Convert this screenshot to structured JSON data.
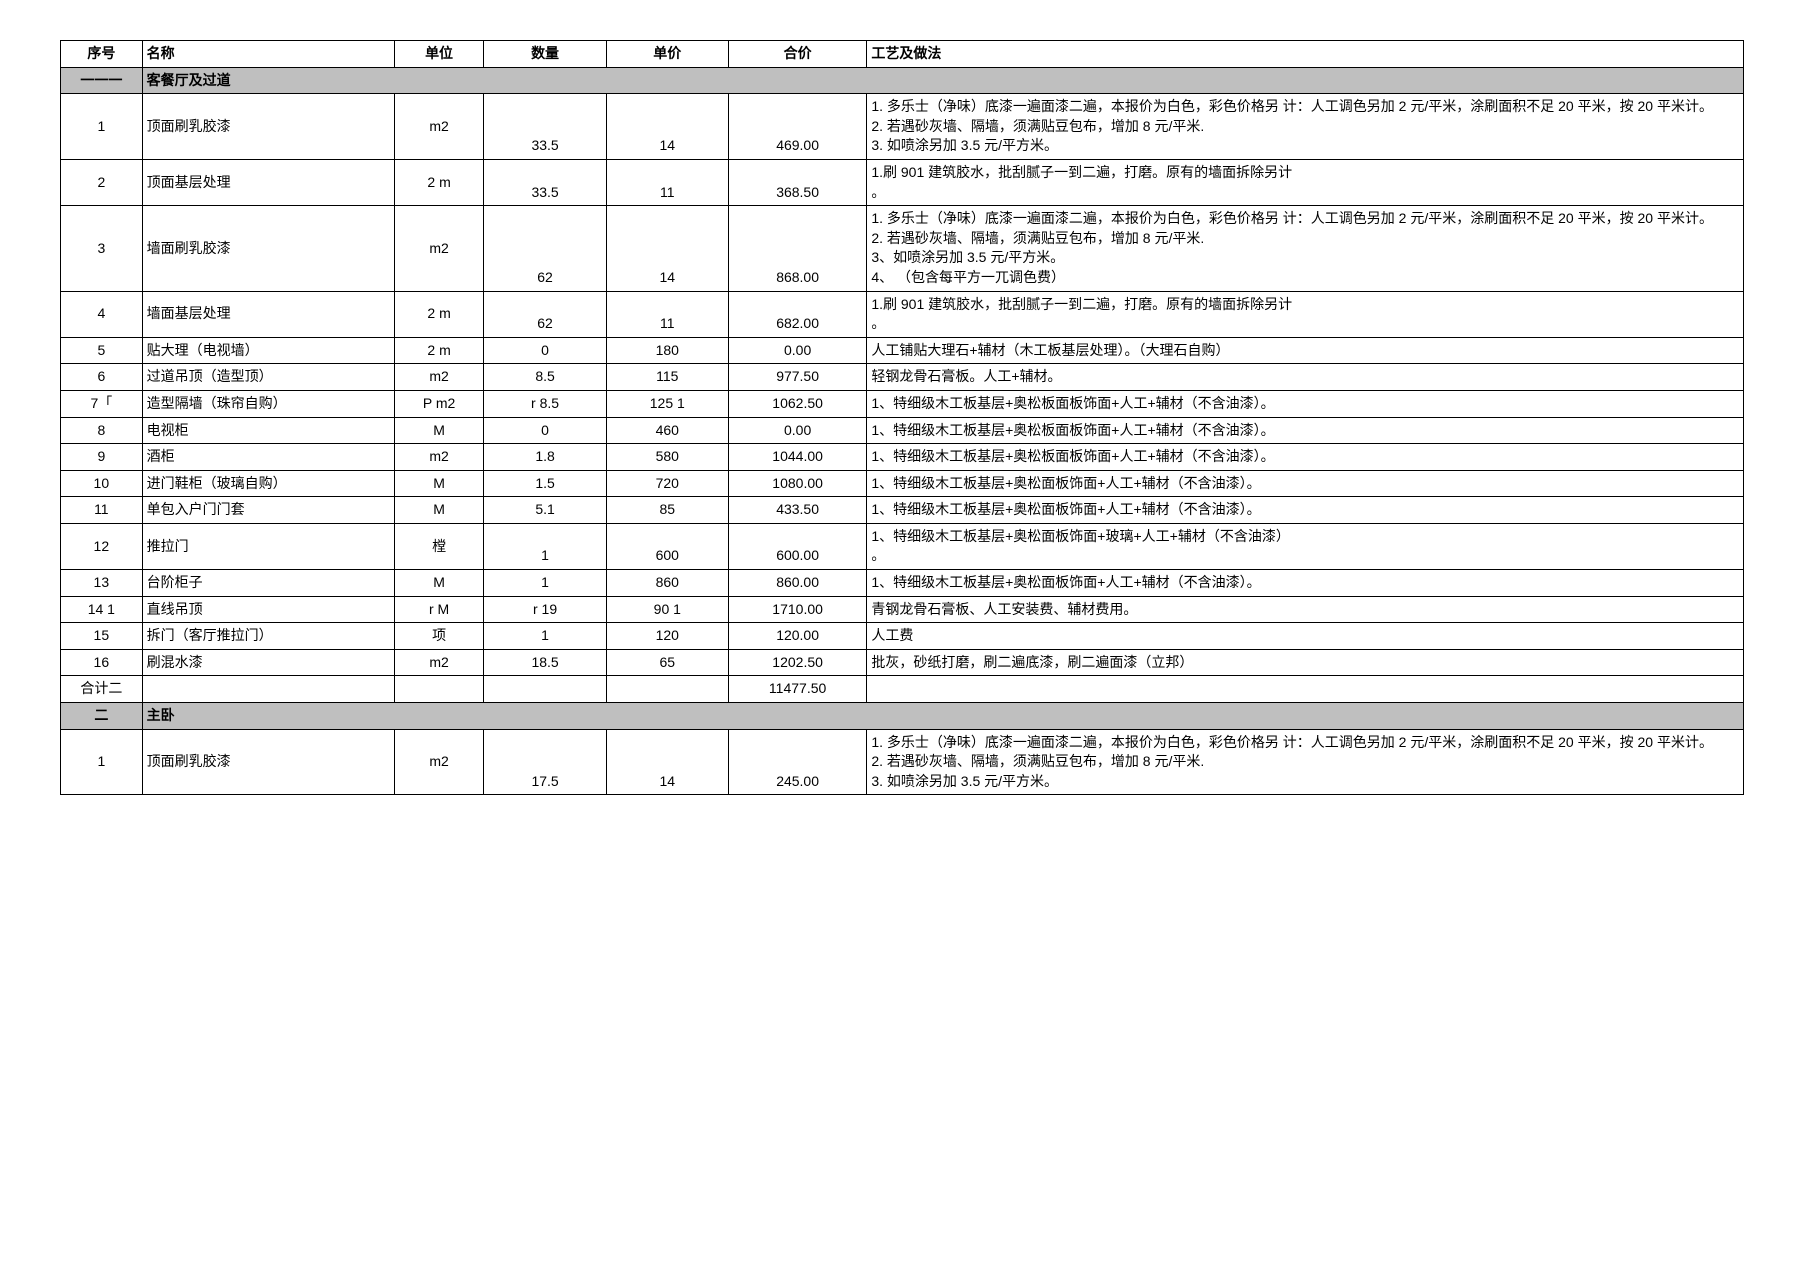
{
  "table": {
    "columns": [
      "序号",
      "名称",
      "单位",
      "数量",
      "单价",
      "合价",
      "工艺及做法"
    ],
    "column_keys": [
      "seq",
      "name",
      "unit",
      "qty",
      "price",
      "total",
      "proc"
    ],
    "column_classes": [
      "col-seq",
      "col-name",
      "col-unit",
      "col-qty",
      "col-price",
      "col-total",
      "col-proc"
    ],
    "border_color": "#000000",
    "section_bg": "#bfbfbf",
    "rows": [
      {
        "type": "section",
        "seq": "一一一",
        "name": "客餐厅及过道"
      },
      {
        "seq": "1",
        "name": "顶面刷乳胶漆",
        "unit": "m2",
        "qty": "33.5",
        "price": "14",
        "total": "469.00",
        "proc": "1. 多乐士（净味）底漆一遍面漆二遍，本报价为白色，彩色价格另 计：人工调色另加 2 元/平米，涂刷面积不足 20 平米，按 20 平米计。\n2. 若遇砂灰墙、隔墙，须满贴豆包布，增加  8 元/平米.\n3.  如喷涂另加 3.5 元/平方米。"
      },
      {
        "seq": "2",
        "name": "顶面基层处理",
        "unit": "2 m",
        "qty": "33.5",
        "price": "11",
        "total": "368.50",
        "proc": "1.刷 901 建筑胶水，批刮腻子一到二遍，打磨。原有的墙面拆除另计\n。"
      },
      {
        "seq": "3",
        "name": "墙面刷乳胶漆",
        "unit": "m2",
        "qty": "62",
        "price": "14",
        "total": "868.00",
        "proc": "1. 多乐士（净味）底漆一遍面漆二遍，本报价为白色，彩色价格另 计：人工调色另加 2 元/平米，涂刷面积不足 20 平米，按 20 平米计。\n2. 若遇砂灰墙、隔墙，须满贴豆包布，增加  8 元/平米.\n3、如喷涂另加 3.5 元/平方米。\n4、 （包含每平方一兀调色费）"
      },
      {
        "seq": "4",
        "name": "墙面基层处理",
        "unit": "2 m",
        "qty": "62",
        "price": "11",
        "total": "682.00",
        "proc": "1.刷 901 建筑胶水，批刮腻子一到二遍，打磨。原有的墙面拆除另计\n。"
      },
      {
        "seq": "5",
        "name": "贴大理（电视墙）",
        "unit": "2 m",
        "qty": "0",
        "price": "180",
        "total": "0.00",
        "proc": "人工铺贴大理石+辅材（木工板基层处理）。（大理石自购）"
      },
      {
        "seq": "6",
        "name": "过道吊顶（造型顶）",
        "unit": "m2",
        "qty": "8.5",
        "price": "115",
        "total": "977.50",
        "proc": "轻钢龙骨石膏板。人工+辅材。"
      },
      {
        "seq": "7「",
        "name": "造型隔墙（珠帘自购）",
        "unit": "P m2",
        "qty": "r 8.5",
        "price": "125 1",
        "total": "1062.50",
        "proc": "1、特细级木工板基层+奥松板面板饰面+人工+辅材（不含油漆）。"
      },
      {
        "seq": "8",
        "name": "电视柜",
        "unit": "M",
        "qty": "0",
        "price": "460",
        "total": "0.00",
        "proc": "1、特细级木工板基层+奥松板面板饰面+人工+辅材（不含油漆）。"
      },
      {
        "seq": "9",
        "name": "酒柜",
        "unit": "m2",
        "qty": "1.8",
        "price": "580",
        "total": "1044.00",
        "proc": "1、特细级木工板基层+奥松板面板饰面+人工+辅材（不含油漆）。"
      },
      {
        "seq": "10",
        "name": "进门鞋柜（玻璃自购）",
        "unit": "M",
        "qty": "1.5",
        "price": "720",
        "total": "1080.00",
        "proc": "1、特细级木工板基层+奥松面板饰面+人工+辅材（不含油漆）。"
      },
      {
        "seq": "11",
        "name": "单包入户门门套",
        "unit": "M",
        "qty": "5.1",
        "price": "85",
        "total": "433.50",
        "proc": "1、特细级木工板基层+奥松面板饰面+人工+辅材（不含油漆）。"
      },
      {
        "seq": "12",
        "name": "推拉门",
        "unit": "樘",
        "qty": "1",
        "price": "600",
        "total": "600.00",
        "proc": "1、特细级木工板基层+奥松面板饰面+玻璃+人工+辅材（不含油漆）\n。"
      },
      {
        "seq": "13",
        "name": "台阶柜子",
        "unit": "M",
        "qty": "1",
        "price": "860",
        "total": "860.00",
        "proc": "1、特细级木工板基层+奥松面板饰面+人工+辅材（不含油漆）。"
      },
      {
        "seq": "14 1",
        "name": "直线吊顶",
        "unit": "r M",
        "qty": "r 19",
        "price": "90 1",
        "total": "1710.00",
        "proc": "青钢龙骨石膏板、人工安装费、辅材费用。"
      },
      {
        "seq": "15",
        "name": "拆门（客厅推拉门）",
        "unit": "项",
        "qty": "1",
        "price": "120",
        "total": "120.00",
        "proc": "人工费"
      },
      {
        "seq": "16",
        "name": "刷混水漆",
        "unit": "m2",
        "qty": "18.5",
        "price": "65",
        "total": "1202.50",
        "proc": "批灰，砂纸打磨，刷二遍底漆，刷二遍面漆（立邦）"
      },
      {
        "seq": "合计二",
        "name": "",
        "unit": "",
        "qty": "",
        "price": "",
        "total": "11477.50",
        "proc": ""
      },
      {
        "type": "section",
        "seq": "二",
        "name": "主卧"
      },
      {
        "seq": "1",
        "name": "顶面刷乳胶漆",
        "unit": "m2",
        "qty": "17.5",
        "price": "14",
        "total": "245.00",
        "proc": "1. 多乐士（净味）底漆一遍面漆二遍，本报价为白色，彩色价格另 计：人工调色另加 2 元/平米，涂刷面积不足 20 平米，按 20 平米计。\n2. 若遇砂灰墙、隔墙，须满贴豆包布，增加  8 元/平米.\n3.  如喷涂另加 3.5 元/平方米。"
      }
    ]
  }
}
